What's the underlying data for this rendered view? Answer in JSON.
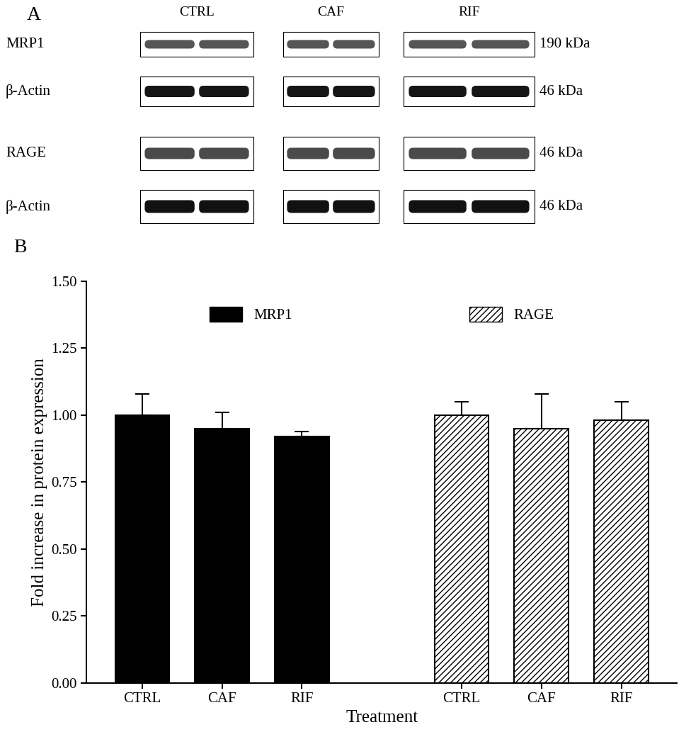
{
  "panel_a": {
    "label": "A",
    "columns": [
      "CTRL",
      "CAF",
      "RIF"
    ],
    "rows": [
      {
        "name": "MRP1",
        "size": "190 kDa"
      },
      {
        "name": "β-Actin",
        "size": "46 kDa"
      },
      {
        "name": "RAGE",
        "size": "46 kDa"
      },
      {
        "name": "β-Actin",
        "size": "46 kDa"
      }
    ]
  },
  "panel_b": {
    "label": "B"
  },
  "chart_data": {
    "type": "bar",
    "categories": [
      "CTRL",
      "CAF",
      "RIF",
      null,
      "CTRL",
      "CAF",
      "RIF"
    ],
    "series": [
      {
        "name": "MRP1",
        "color": "#000000",
        "values": [
          1.0,
          0.95,
          0.92,
          null,
          null,
          null,
          null
        ],
        "errors": [
          0.08,
          0.06,
          0.02,
          null,
          null,
          null,
          null
        ]
      },
      {
        "name": "RAGE",
        "color": "#ffffff",
        "values": [
          null,
          null,
          null,
          null,
          1.0,
          0.95,
          0.98
        ],
        "errors": [
          null,
          null,
          null,
          null,
          0.05,
          0.13,
          0.07
        ]
      }
    ],
    "x_label": "Treatment",
    "y_label": "Fold increase in protein expression",
    "ylim": [
      0,
      1.5
    ],
    "yticks": [
      {
        "value": 0,
        "label": "0.00"
      },
      {
        "value": 0.25,
        "label": "0.25"
      },
      {
        "value": 0.5,
        "label": "0.50"
      },
      {
        "value": 0.75,
        "label": "0.75"
      },
      {
        "value": 1.0,
        "label": "1.00"
      },
      {
        "value": 1.25,
        "label": "1.25"
      },
      {
        "value": 1.5,
        "label": "1.50"
      }
    ],
    "legend": "upper center"
  }
}
